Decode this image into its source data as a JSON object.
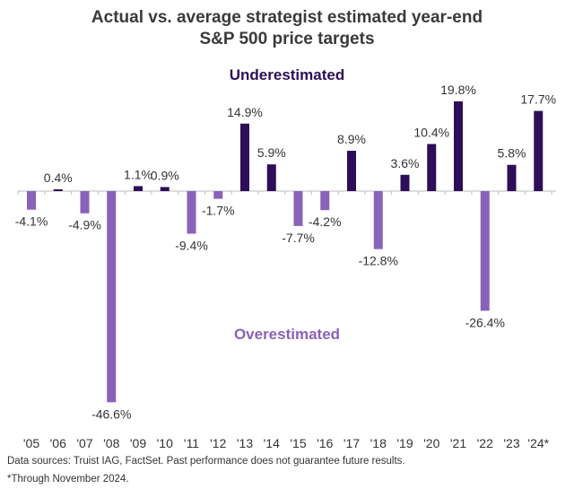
{
  "chart_data": {
    "type": "bar",
    "title": [
      "Actual vs. average strategist estimated year-end",
      "S&P 500 price targets"
    ],
    "categories": [
      "'05",
      "'06",
      "'07",
      "'08",
      "'09",
      "'10",
      "'11",
      "'12",
      "'13",
      "'14",
      "'15",
      "'16",
      "'17",
      "'18",
      "'19",
      "'20",
      "'21",
      "'22",
      "'23",
      "'24*"
    ],
    "values": [
      -4.1,
      0.4,
      -4.9,
      -46.6,
      1.1,
      0.9,
      -9.4,
      -1.7,
      14.9,
      5.9,
      -7.7,
      -4.2,
      8.9,
      -12.8,
      3.6,
      10.4,
      19.8,
      -26.4,
      5.8,
      17.7
    ],
    "data_labels": [
      "-4.1%",
      "0.4%",
      "-4.9%",
      "-46.6%",
      "1.1%",
      "0.9%",
      "-9.4%",
      "-1.7%",
      "14.9%",
      "5.9%",
      "-7.7%",
      "-4.2%",
      "8.9%",
      "-12.8%",
      "3.6%",
      "10.4%",
      "19.8%",
      "-26.4%",
      "5.8%",
      "17.7%"
    ],
    "annotations": {
      "positive": "Underestimated",
      "negative": "Overestimated"
    },
    "colors": {
      "positive": "#2e0e57",
      "negative": "#8a62b8"
    },
    "xlabel": "",
    "ylabel": "",
    "ylim": [
      -50,
      25
    ],
    "grid": false,
    "legend": "none"
  },
  "footer": {
    "sources": "Data sources: Truist IAG, FactSet. Past performance does not guarantee future results.",
    "footnote": "*Through November 2024."
  }
}
